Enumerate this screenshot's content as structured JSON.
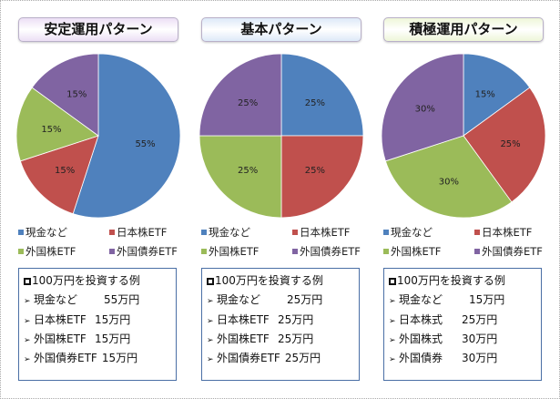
{
  "colors": {
    "cash": "#4f81bd",
    "jp": "#c0504d",
    "foreign_stock": "#9bbb59",
    "foreign_bond": "#8064a2"
  },
  "chart_data": [
    {
      "type": "pie",
      "title": "安定運用パターン",
      "title_bg": "#ecdff5",
      "labels": [
        "現金など",
        "日本株ETF",
        "外国株ETF",
        "外国債券ETF"
      ],
      "values": [
        55,
        15,
        15,
        15
      ],
      "data_labels": [
        "55%",
        "15%",
        "15%",
        "15%"
      ],
      "legend": "bottom",
      "example": {
        "heading": "100万円を投資する例",
        "rows": [
          {
            "label": "現金など",
            "amount": "55万円"
          },
          {
            "label": "日本株ETF",
            "amount": "15万円"
          },
          {
            "label": "外国株ETF",
            "amount": "15万円"
          },
          {
            "label": "外国債券ETF",
            "amount": "15万円"
          }
        ]
      }
    },
    {
      "type": "pie",
      "title": "基本パターン",
      "title_bg": "#dde9f8",
      "labels": [
        "現金など",
        "日本株ETF",
        "外国株ETF",
        "外国債券ETF"
      ],
      "values": [
        25,
        25,
        25,
        25
      ],
      "data_labels": [
        "25%",
        "25%",
        "25%",
        "25%"
      ],
      "legend": "bottom",
      "example": {
        "heading": "100万円を投資する例",
        "rows": [
          {
            "label": "現金など",
            "amount": "25万円"
          },
          {
            "label": "日本株ETF",
            "amount": "25万円"
          },
          {
            "label": "外国株ETF",
            "amount": "25万円"
          },
          {
            "label": "外国債券ETF",
            "amount": "25万円"
          }
        ]
      }
    },
    {
      "type": "pie",
      "title": "積極運用パターン",
      "title_bg": "#eef6d8",
      "labels": [
        "現金など",
        "日本株ETF",
        "外国株ETF",
        "外国債券ETF"
      ],
      "values": [
        15,
        25,
        30,
        30
      ],
      "data_labels": [
        "15%",
        "25%",
        "30%",
        "30%"
      ],
      "legend": "bottom",
      "example": {
        "heading": "100万円を投資する例",
        "rows": [
          {
            "label": "現金など",
            "amount": "15万円"
          },
          {
            "label": "日本株式",
            "amount": "25万円"
          },
          {
            "label": "外国株式",
            "amount": "30万円"
          },
          {
            "label": "外国債券",
            "amount": "30万円"
          }
        ]
      }
    }
  ]
}
